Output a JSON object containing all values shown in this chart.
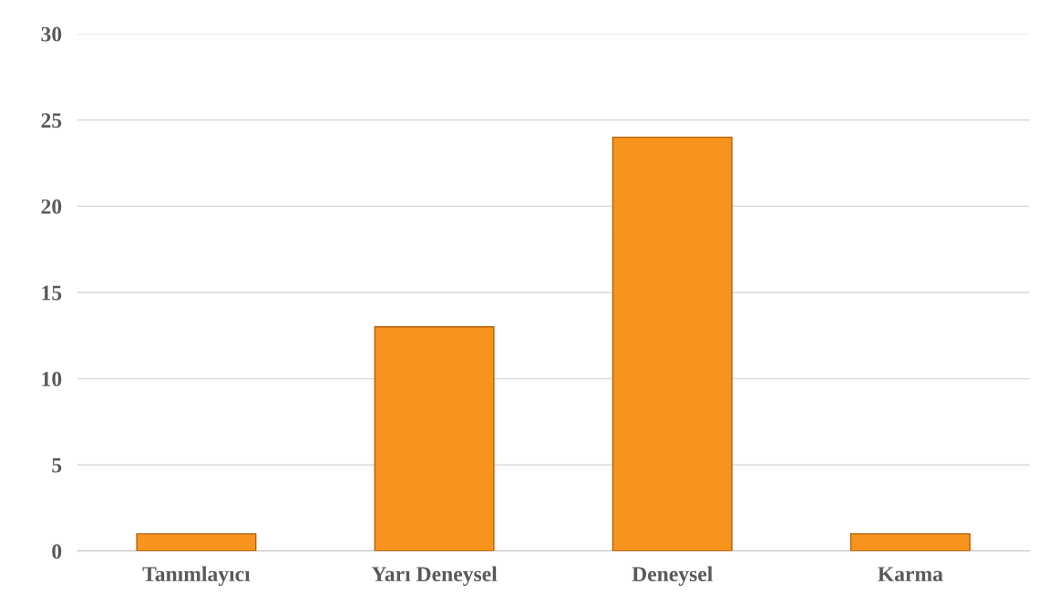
{
  "chart_data": {
    "type": "bar",
    "categories": [
      "Tanımlayıcı",
      "Yarı Deneysel",
      "Deneysel",
      "Karma"
    ],
    "values": [
      1,
      13,
      24,
      1
    ],
    "color": "#f7941d",
    "ylim": [
      0,
      30
    ],
    "yticks": [
      0,
      5,
      10,
      15,
      20,
      25,
      30
    ],
    "grid": "y"
  }
}
